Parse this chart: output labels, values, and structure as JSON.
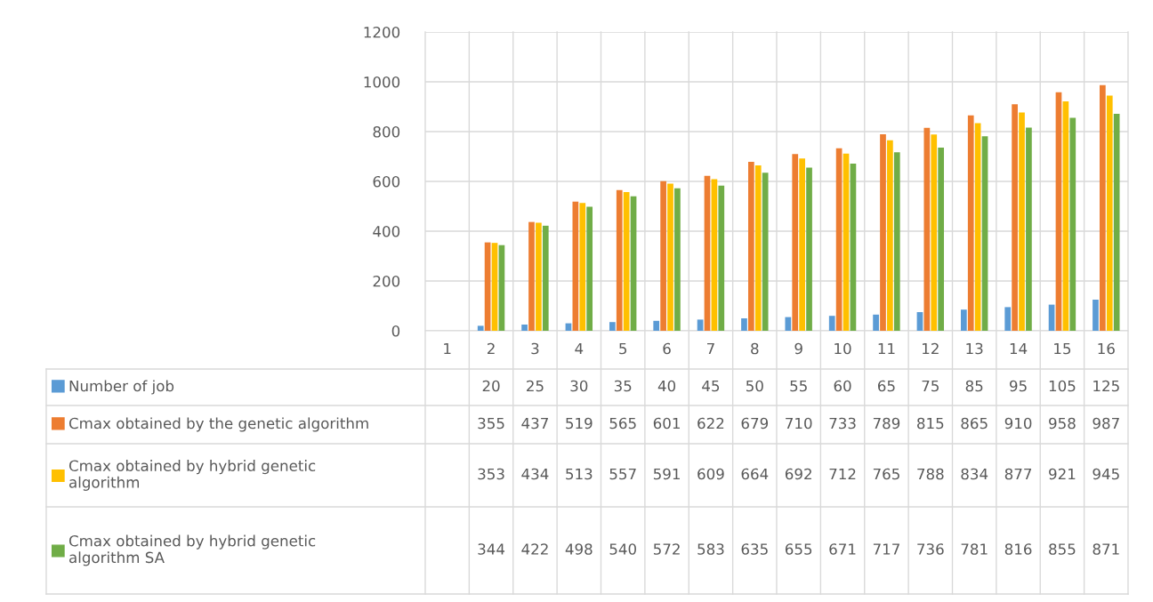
{
  "chart_data": {
    "type": "bar",
    "categories": [
      "1",
      "2",
      "3",
      "4",
      "5",
      "6",
      "7",
      "8",
      "9",
      "10",
      "11",
      "12",
      "13",
      "14",
      "15",
      "16"
    ],
    "series": [
      {
        "name": "Number of job",
        "color": "#5b9bd5",
        "values": [
          null,
          20,
          25,
          30,
          35,
          40,
          45,
          50,
          55,
          60,
          65,
          75,
          85,
          95,
          105,
          125
        ]
      },
      {
        "name": "Cmax obtained by the genetic algorithm",
        "color": "#ed7d31",
        "values": [
          null,
          355,
          437,
          519,
          565,
          601,
          622,
          679,
          710,
          733,
          789,
          815,
          865,
          910,
          958,
          987
        ]
      },
      {
        "name": "Cmax obtained by hybrid genetic algorithm",
        "color": "#ffc000",
        "values": [
          null,
          353,
          434,
          513,
          557,
          591,
          609,
          664,
          692,
          712,
          765,
          788,
          834,
          877,
          921,
          945
        ]
      },
      {
        "name": "Cmax obtained by hybrid genetic algorithm SA",
        "color": "#70ad47",
        "values": [
          null,
          344,
          422,
          498,
          540,
          572,
          583,
          635,
          655,
          671,
          717,
          736,
          781,
          816,
          855,
          871
        ]
      }
    ],
    "ylim": [
      0,
      1200
    ],
    "yticks": [
      0,
      200,
      400,
      600,
      800,
      1000,
      1200
    ],
    "grid": "y",
    "legend": "bottom",
    "data_labels": true
  }
}
